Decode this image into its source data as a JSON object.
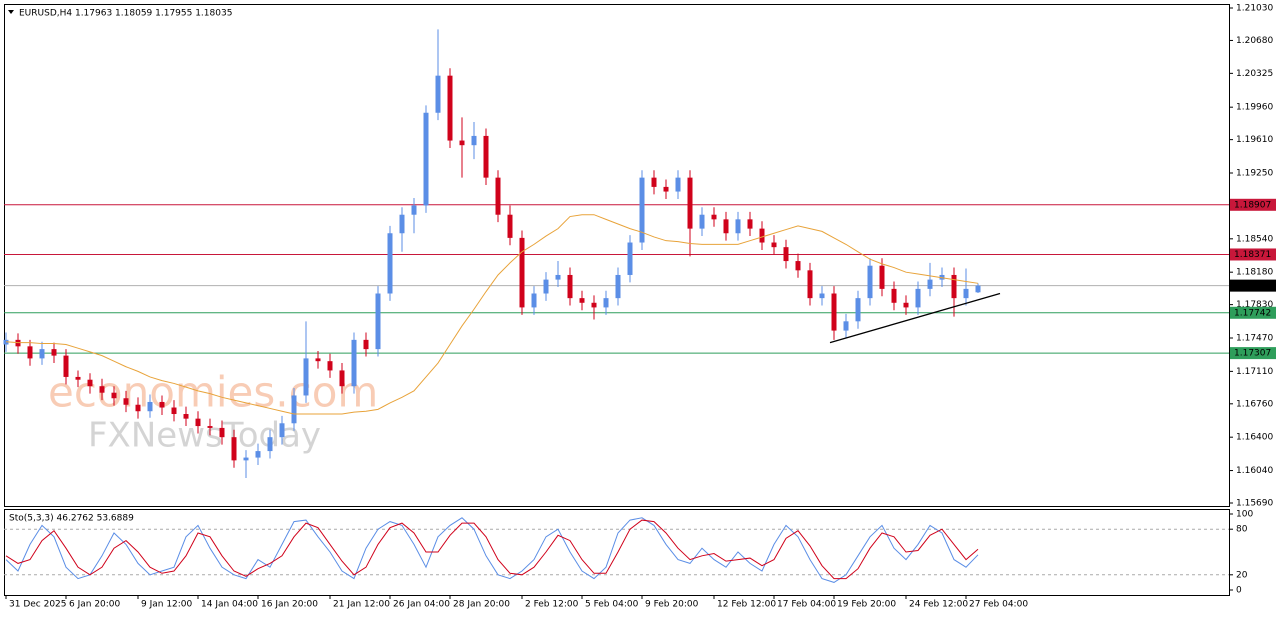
{
  "chart_data": {
    "type": "candlestick",
    "title": "EURUSD,H4  1.17963 1.18059 1.17955 1.18035",
    "watermark": [
      "economies.com",
      "FXNewsToday"
    ],
    "categories": [
      "31 Dec 2025",
      null,
      null,
      null,
      null,
      "6 Jan 20:00",
      null,
      null,
      null,
      null,
      null,
      "9 Jan 12:00",
      null,
      null,
      null,
      null,
      "14 Jan 04:00",
      null,
      null,
      null,
      null,
      "16 Jan 20:00",
      null,
      null,
      null,
      null,
      null,
      "21 Jan 12:00",
      null,
      null,
      null,
      null,
      "26 Jan 04:00",
      null,
      null,
      null,
      null,
      "28 Jan 20:00",
      null,
      null,
      null,
      null,
      null,
      "2 Feb 12:00",
      null,
      null,
      null,
      null,
      "5 Feb 04:00",
      null,
      null,
      null,
      null,
      "9 Feb 20:00",
      null,
      null,
      null,
      null,
      null,
      "12 Feb 12:00",
      null,
      null,
      null,
      null,
      "17 Feb 04:00",
      null,
      null,
      null,
      null,
      "19 Feb 20:00",
      null,
      null,
      null,
      null,
      null,
      "24 Feb 12:00",
      null,
      null,
      null,
      null,
      "27 Feb 04:00",
      null
    ],
    "up_color": "#5b8ee6",
    "down_color": "#d0021b",
    "series": [
      {
        "ohlc": [
          [
            1.174,
            1.1753,
            1.1732,
            1.1745
          ],
          [
            1.1745,
            1.1752,
            1.173,
            1.1738
          ],
          [
            1.1738,
            1.1745,
            1.1717,
            1.1725
          ],
          [
            1.1725,
            1.1743,
            1.1718,
            1.1735
          ],
          [
            1.1735,
            1.1742,
            1.172,
            1.1728
          ],
          [
            1.1728,
            1.1735,
            1.1697,
            1.1705
          ],
          [
            1.1705,
            1.1712,
            1.1694,
            1.1702
          ],
          [
            1.1702,
            1.1709,
            1.1687,
            1.1695
          ],
          [
            1.1695,
            1.1703,
            1.168,
            1.1688
          ],
          [
            1.1688,
            1.1695,
            1.1674,
            1.1682
          ],
          [
            1.1682,
            1.169,
            1.1667,
            1.1675
          ],
          [
            1.1675,
            1.1683,
            1.166,
            1.1668
          ],
          [
            1.1668,
            1.1686,
            1.1661,
            1.1678
          ],
          [
            1.1678,
            1.1685,
            1.1664,
            1.1672
          ],
          [
            1.1672,
            1.168,
            1.1657,
            1.1665
          ],
          [
            1.1665,
            1.1673,
            1.1652,
            1.166
          ],
          [
            1.166,
            1.1668,
            1.1644,
            1.1652
          ],
          [
            1.1652,
            1.166,
            1.1642,
            1.165
          ],
          [
            1.165,
            1.1658,
            1.1632,
            1.164
          ],
          [
            1.164,
            1.1648,
            1.1607,
            1.1615
          ],
          [
            1.1615,
            1.1626,
            1.1596,
            1.1618
          ],
          [
            1.1618,
            1.1633,
            1.161,
            1.1625
          ],
          [
            1.1625,
            1.1648,
            1.1617,
            1.164
          ],
          [
            1.164,
            1.1663,
            1.1632,
            1.1655
          ],
          [
            1.1655,
            1.1693,
            1.1647,
            1.1685
          ],
          [
            1.1685,
            1.1765,
            1.1677,
            1.1725
          ],
          [
            1.1725,
            1.1733,
            1.1714,
            1.1722
          ],
          [
            1.1722,
            1.173,
            1.1704,
            1.1712
          ],
          [
            1.1712,
            1.172,
            1.1687,
            1.1695
          ],
          [
            1.1695,
            1.1753,
            1.1687,
            1.1745
          ],
          [
            1.1745,
            1.1753,
            1.1727,
            1.1735
          ],
          [
            1.1735,
            1.1803,
            1.1727,
            1.1795
          ],
          [
            1.1795,
            1.1868,
            1.1787,
            1.186
          ],
          [
            1.186,
            1.1888,
            1.184,
            1.188
          ],
          [
            1.188,
            1.1898,
            1.186,
            1.189
          ],
          [
            1.189,
            1.1998,
            1.1882,
            1.199
          ],
          [
            1.199,
            1.208,
            1.1982,
            1.203
          ],
          [
            1.203,
            1.2038,
            1.1952,
            1.196
          ],
          [
            1.196,
            1.1985,
            1.192,
            1.1955
          ],
          [
            1.1955,
            1.198,
            1.194,
            1.1965
          ],
          [
            1.1965,
            1.1973,
            1.1912,
            1.192
          ],
          [
            1.192,
            1.1928,
            1.1872,
            1.188
          ],
          [
            1.188,
            1.189,
            1.1847,
            1.1855
          ],
          [
            1.1855,
            1.1863,
            1.1772,
            1.178
          ],
          [
            1.178,
            1.1803,
            1.1772,
            1.1795
          ],
          [
            1.1795,
            1.1818,
            1.1787,
            1.181
          ],
          [
            1.181,
            1.183,
            1.1802,
            1.1815
          ],
          [
            1.1815,
            1.1823,
            1.1782,
            1.179
          ],
          [
            1.179,
            1.1798,
            1.1777,
            1.1785
          ],
          [
            1.1785,
            1.1793,
            1.1767,
            1.178
          ],
          [
            1.178,
            1.1798,
            1.1772,
            1.179
          ],
          [
            1.179,
            1.1823,
            1.1782,
            1.1815
          ],
          [
            1.1815,
            1.1858,
            1.1807,
            1.185
          ],
          [
            1.185,
            1.1928,
            1.1842,
            1.192
          ],
          [
            1.192,
            1.1928,
            1.1902,
            1.191
          ],
          [
            1.191,
            1.1918,
            1.1897,
            1.1905
          ],
          [
            1.1905,
            1.1928,
            1.1897,
            1.192
          ],
          [
            1.192,
            1.1928,
            1.1835,
            1.1865
          ],
          [
            1.1865,
            1.1888,
            1.1857,
            1.188
          ],
          [
            1.188,
            1.1888,
            1.1867,
            1.1875
          ],
          [
            1.1875,
            1.1883,
            1.1852,
            1.186
          ],
          [
            1.186,
            1.1883,
            1.1852,
            1.1875
          ],
          [
            1.1875,
            1.1883,
            1.1857,
            1.1865
          ],
          [
            1.1865,
            1.1873,
            1.1842,
            1.185
          ],
          [
            1.185,
            1.1858,
            1.1837,
            1.1845
          ],
          [
            1.1845,
            1.1853,
            1.1822,
            1.183
          ],
          [
            1.183,
            1.1838,
            1.1812,
            1.182
          ],
          [
            1.182,
            1.1828,
            1.1782,
            1.179
          ],
          [
            1.179,
            1.1803,
            1.1782,
            1.1795
          ],
          [
            1.1795,
            1.1803,
            1.1745,
            1.1755
          ],
          [
            1.1755,
            1.1773,
            1.1747,
            1.1765
          ],
          [
            1.1765,
            1.1798,
            1.1757,
            1.179
          ],
          [
            1.179,
            1.1833,
            1.1782,
            1.1825
          ],
          [
            1.1825,
            1.1833,
            1.1792,
            1.18
          ],
          [
            1.18,
            1.1808,
            1.1777,
            1.1785
          ],
          [
            1.1785,
            1.1793,
            1.1772,
            1.178
          ],
          [
            1.178,
            1.1808,
            1.1772,
            1.18
          ],
          [
            1.18,
            1.1828,
            1.1792,
            1.181
          ],
          [
            1.181,
            1.1823,
            1.1802,
            1.1815
          ],
          [
            1.1815,
            1.1823,
            1.177,
            1.179
          ],
          [
            1.179,
            1.1822,
            1.1782,
            1.18
          ],
          [
            1.17963,
            1.18059,
            1.17955,
            1.18035
          ]
        ]
      }
    ],
    "ma": {
      "color": "#e8a33a",
      "values": [
        1.1743,
        1.1742,
        1.1742,
        1.1741,
        1.1741,
        1.174,
        1.1736,
        1.1732,
        1.1728,
        1.1722,
        1.1716,
        1.1711,
        1.1705,
        1.1701,
        1.1698,
        1.1694,
        1.169,
        1.1687,
        1.1683,
        1.168,
        1.1677,
        1.1674,
        1.1671,
        1.1668,
        1.1665,
        1.1665,
        1.1665,
        1.1665,
        1.1665,
        1.1667,
        1.1668,
        1.167,
        1.1677,
        1.1683,
        1.169,
        1.1705,
        1.172,
        1.174,
        1.176,
        1.1778,
        1.1797,
        1.1815,
        1.1828,
        1.184,
        1.1848,
        1.1857,
        1.1865,
        1.1878,
        1.188,
        1.188,
        1.1875,
        1.187,
        1.1865,
        1.1861,
        1.1856,
        1.1852,
        1.1851,
        1.1849,
        1.1848,
        1.1848,
        1.1848,
        1.1848,
        1.1852,
        1.1856,
        1.186,
        1.1864,
        1.1868,
        1.1865,
        1.1862,
        1.1855,
        1.1848,
        1.184,
        1.1832,
        1.1827,
        1.1823,
        1.1818,
        1.1816,
        1.1814,
        1.1812,
        1.181,
        1.1808,
        1.1806
      ]
    },
    "levels": [
      {
        "value": 1.18907,
        "color": "#c8173a"
      },
      {
        "value": 1.18371,
        "color": "#c8173a"
      },
      {
        "value": 1.18035,
        "color": "#000000"
      },
      {
        "value": 1.17742,
        "color": "#2e9e5b"
      },
      {
        "value": 1.17307,
        "color": "#2e9e5b"
      }
    ],
    "trendline": {
      "color": "#000000",
      "values": [
        1.1742,
        1.1795
      ]
    },
    "ylim": [
      1.1569,
      1.2103
    ],
    "yticks": [
      {
        "value": 1.2103,
        "label": "1.21030"
      },
      {
        "value": 1.2068,
        "label": "1.20680"
      },
      1.20325,
      {
        "value": 1.1996,
        "label": "1.19960"
      },
      {
        "value": 1.1961,
        "label": "1.19610"
      },
      {
        "value": 1.1925,
        "label": "1.19250"
      },
      {
        "value": 1.1854,
        "label": "1.18540"
      },
      {
        "value": 1.1818,
        "label": "1.18180"
      },
      {
        "value": 1.1783,
        "label": "1.17830"
      },
      {
        "value": 1.1747,
        "label": "1.17470"
      },
      {
        "value": 1.1711,
        "label": "1.17110"
      },
      {
        "value": 1.1676,
        "label": "1.16760"
      },
      {
        "value": 1.164,
        "label": "1.16400"
      },
      {
        "value": 1.1604,
        "label": "1.16040"
      },
      {
        "value": 1.1569,
        "label": "1.15690"
      }
    ],
    "stochastic": {
      "title": "Sto(5,3,3) 46.2762 53.6889",
      "ylim": [
        0,
        100
      ],
      "yticks": [
        100,
        80,
        20,
        0
      ],
      "levels": [
        80,
        20
      ],
      "series": [
        {
          "color": "#5b8ee6",
          "values": [
            40,
            25,
            60,
            85,
            70,
            30,
            15,
            20,
            45,
            75,
            60,
            35,
            20,
            25,
            30,
            70,
            85,
            55,
            30,
            20,
            15,
            40,
            30,
            60,
            90,
            92,
            70,
            50,
            25,
            15,
            55,
            80,
            90,
            85,
            60,
            30,
            70,
            85,
            95,
            80,
            45,
            20,
            15,
            25,
            40,
            70,
            80,
            50,
            25,
            15,
            30,
            75,
            92,
            95,
            85,
            60,
            40,
            35,
            55,
            40,
            30,
            50,
            35,
            25,
            60,
            85,
            70,
            40,
            15,
            10,
            20,
            45,
            70,
            85,
            55,
            40,
            60,
            85,
            75,
            40,
            30,
            46.2762
          ]
        },
        {
          "color": "#d0021b",
          "values": [
            45,
            35,
            40,
            65,
            78,
            55,
            30,
            20,
            30,
            55,
            65,
            50,
            30,
            22,
            25,
            45,
            75,
            70,
            45,
            25,
            18,
            28,
            35,
            45,
            70,
            88,
            82,
            60,
            38,
            20,
            30,
            60,
            82,
            88,
            75,
            50,
            50,
            72,
            88,
            88,
            70,
            40,
            22,
            20,
            30,
            50,
            72,
            65,
            40,
            22,
            22,
            50,
            80,
            92,
            90,
            75,
            55,
            40,
            45,
            48,
            38,
            40,
            42,
            32,
            40,
            68,
            78,
            58,
            32,
            15,
            15,
            28,
            55,
            75,
            70,
            50,
            52,
            72,
            80,
            60,
            40,
            53.6889
          ]
        }
      ]
    }
  }
}
